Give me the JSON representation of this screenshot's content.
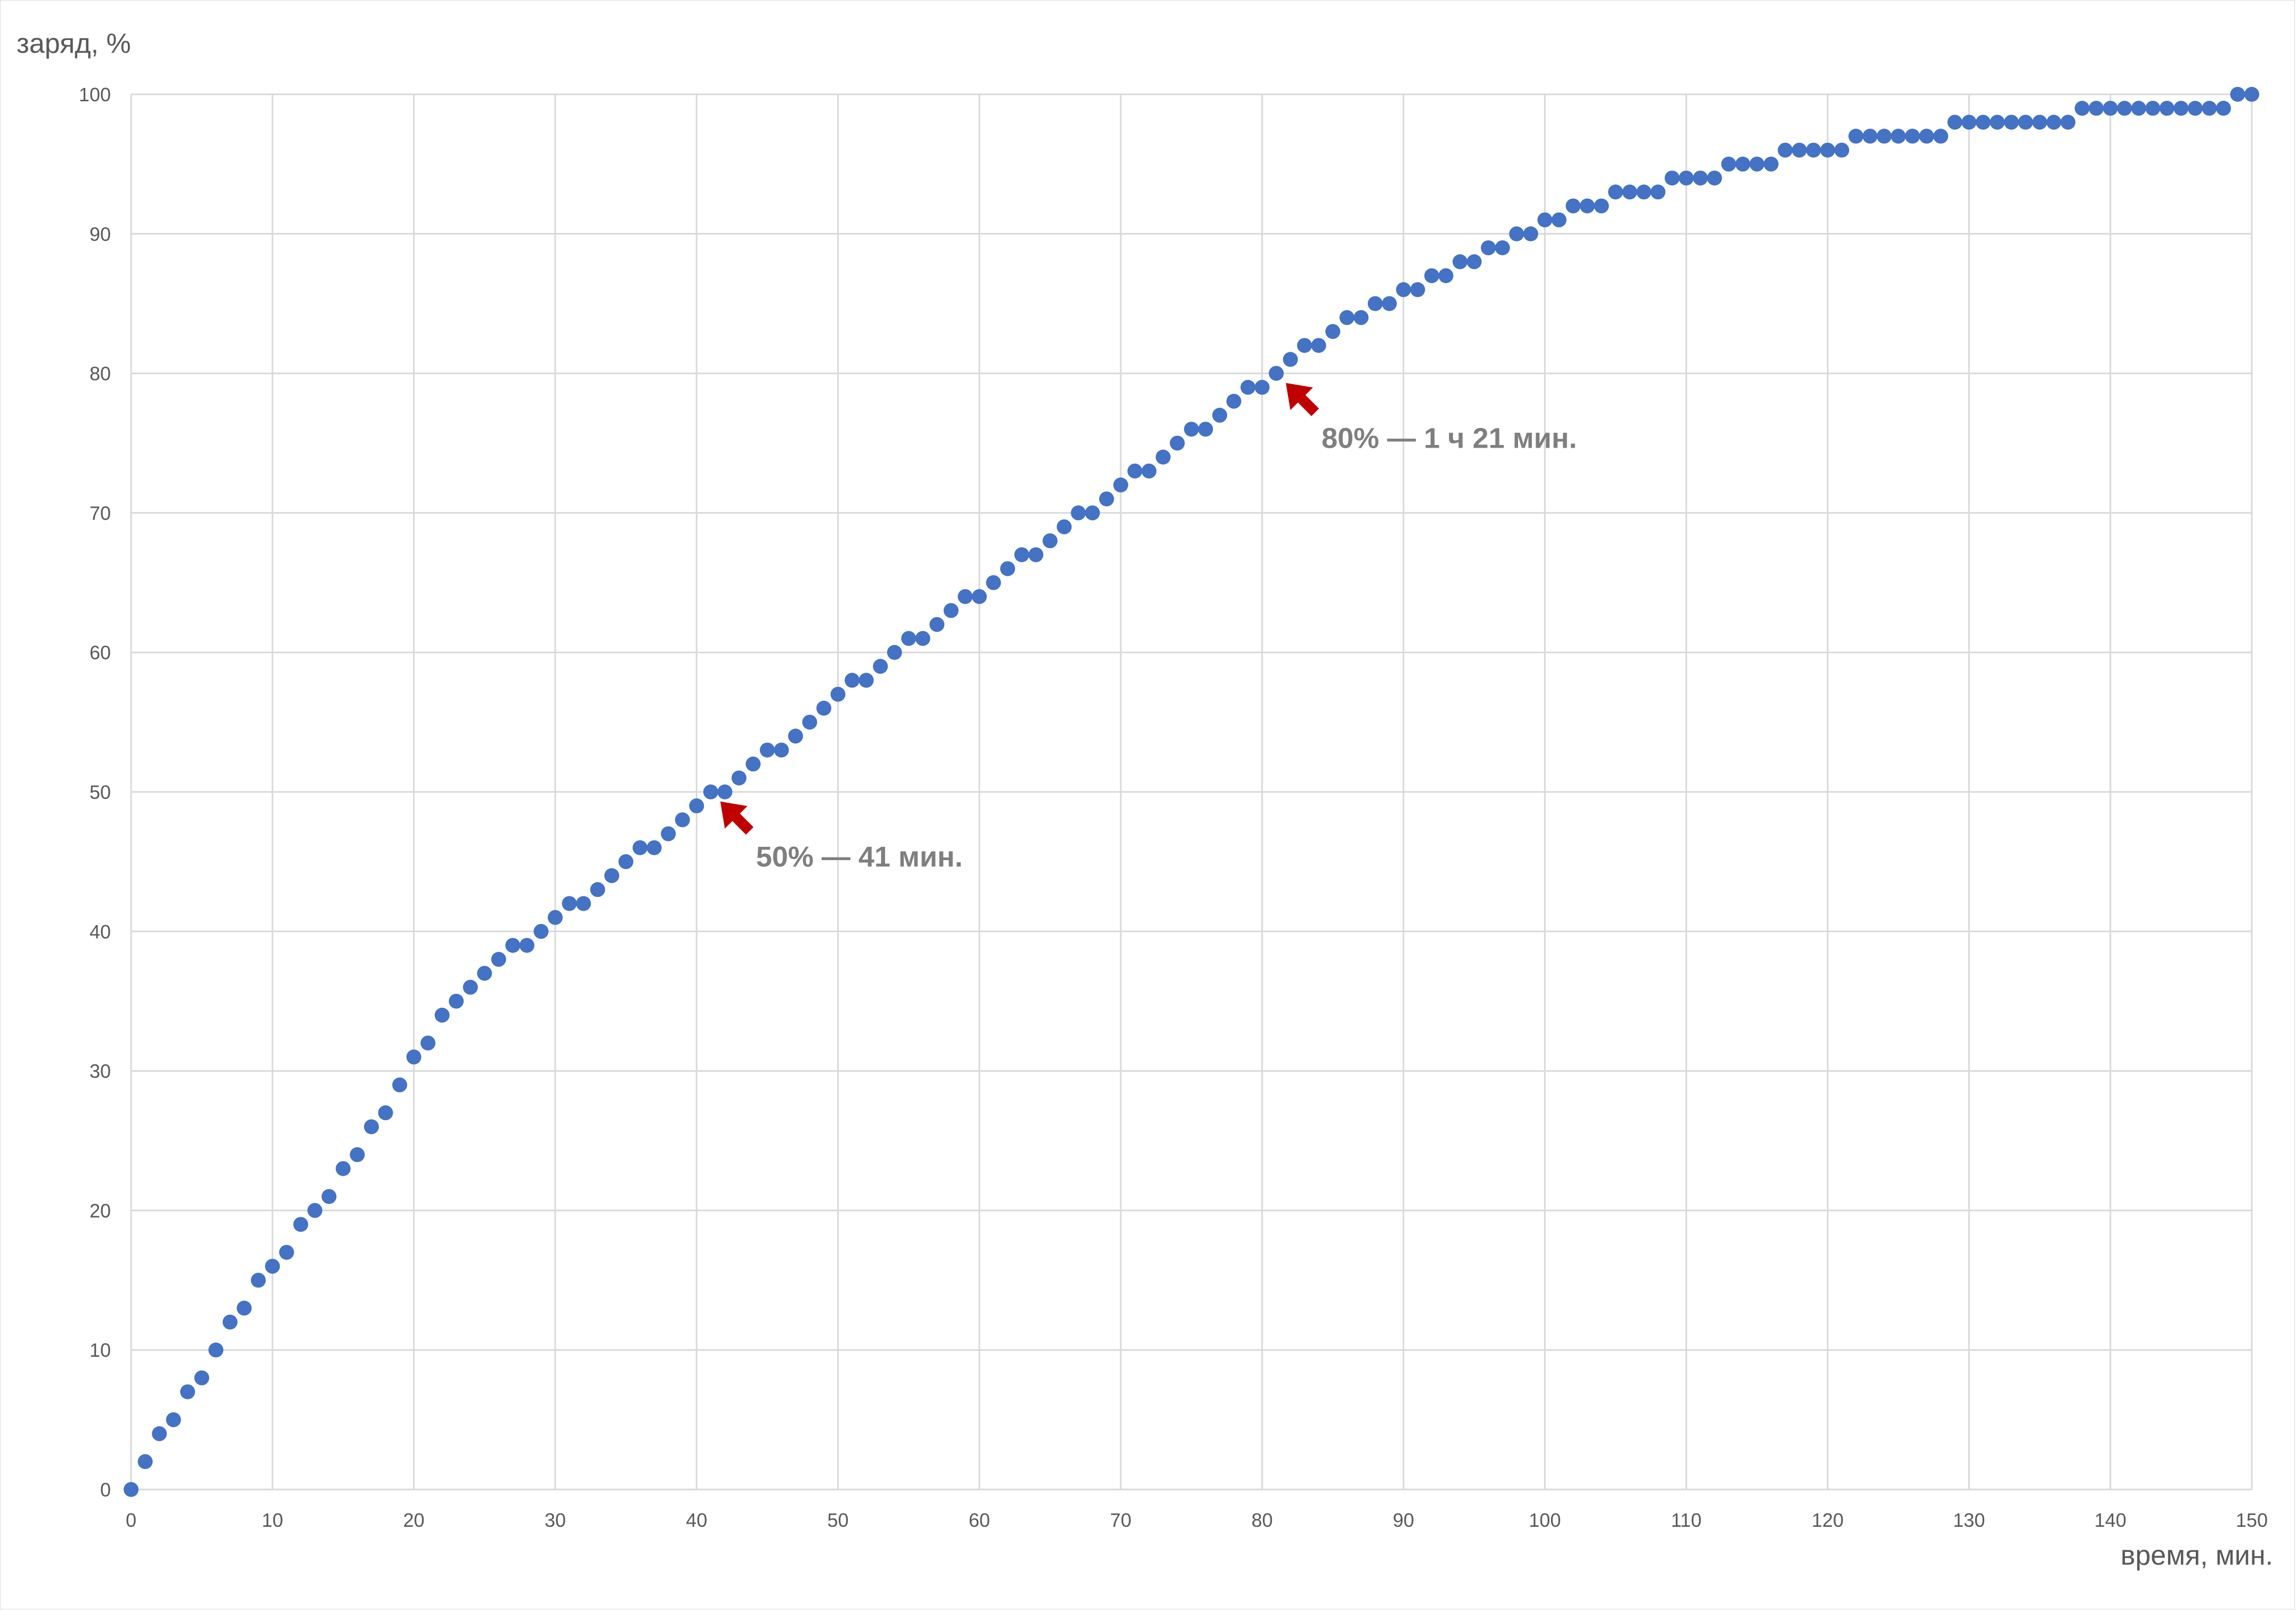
{
  "chart_data": {
    "type": "scatter",
    "title": "",
    "xlabel": "время, мин.",
    "ylabel": "заряд, %",
    "xlim": [
      0,
      150
    ],
    "ylim": [
      0,
      100
    ],
    "x_ticks": [
      0,
      10,
      20,
      30,
      40,
      50,
      60,
      70,
      80,
      90,
      100,
      110,
      120,
      130,
      140,
      150
    ],
    "y_ticks": [
      0,
      10,
      20,
      30,
      40,
      50,
      60,
      70,
      80,
      90,
      100
    ],
    "grid": true,
    "legend": "none",
    "marker_color": "#4472c4",
    "series": [
      {
        "x": [
          0,
          1,
          2,
          3,
          4,
          5,
          6,
          7,
          8,
          9,
          10,
          11,
          12,
          13,
          14,
          15,
          16,
          17,
          18,
          19,
          20,
          21,
          22,
          23,
          24,
          25,
          26,
          27,
          28,
          29,
          30,
          31,
          32,
          33,
          34,
          35,
          36,
          37,
          38,
          39,
          40,
          41,
          42,
          43,
          44,
          45,
          46,
          47,
          48,
          49,
          50,
          51,
          52,
          53,
          54,
          55,
          56,
          57,
          58,
          59,
          60,
          61,
          62,
          63,
          64,
          65,
          66,
          67,
          68,
          69,
          70,
          71,
          72,
          73,
          74,
          75,
          76,
          77,
          78,
          79,
          80,
          81,
          82,
          83,
          84,
          85,
          86,
          87,
          88,
          89,
          90,
          91,
          92,
          93,
          94,
          95,
          96,
          97,
          98,
          99,
          100,
          101,
          102,
          103,
          104,
          105,
          106,
          107,
          108,
          109,
          110,
          111,
          112,
          113,
          114,
          115,
          116,
          117,
          118,
          119,
          120,
          121,
          122,
          123,
          124,
          125,
          126,
          127,
          128,
          129,
          130,
          131,
          132,
          133,
          134,
          135,
          136,
          137,
          138,
          139,
          140,
          141,
          142,
          143,
          144,
          145,
          146,
          147,
          148,
          149,
          150
        ],
        "y": [
          0,
          2,
          4,
          5,
          7,
          8,
          10,
          12,
          13,
          15,
          16,
          17,
          19,
          20,
          21,
          23,
          24,
          26,
          27,
          29,
          31,
          32,
          34,
          35,
          36,
          37,
          38,
          39,
          39,
          40,
          41,
          42,
          42,
          43,
          44,
          45,
          46,
          46,
          47,
          48,
          49,
          50,
          50,
          51,
          52,
          53,
          53,
          54,
          55,
          56,
          57,
          58,
          58,
          59,
          60,
          61,
          61,
          62,
          63,
          64,
          64,
          65,
          66,
          67,
          67,
          68,
          69,
          70,
          70,
          71,
          72,
          73,
          73,
          74,
          75,
          76,
          76,
          77,
          78,
          79,
          79,
          80,
          81,
          82,
          82,
          83,
          84,
          84,
          85,
          85,
          86,
          86,
          87,
          87,
          88,
          88,
          89,
          89,
          90,
          90,
          91,
          91,
          92,
          92,
          92,
          93,
          93,
          93,
          93,
          94,
          94,
          94,
          94,
          95,
          95,
          95,
          95,
          96,
          96,
          96,
          96,
          96,
          97,
          97,
          97,
          97,
          97,
          97,
          97,
          98,
          98,
          98,
          98,
          98,
          98,
          98,
          98,
          98,
          99,
          99,
          99,
          99,
          99,
          99,
          99,
          99,
          99,
          99,
          99,
          100,
          100
        ]
      }
    ],
    "annotations": [
      {
        "x": 41,
        "y": 50,
        "text": "50% — 41 мин.",
        "color": "#c00000"
      },
      {
        "x": 81,
        "y": 80,
        "text": "80% — 1 ч 21 мин.",
        "color": "#c00000"
      }
    ]
  }
}
